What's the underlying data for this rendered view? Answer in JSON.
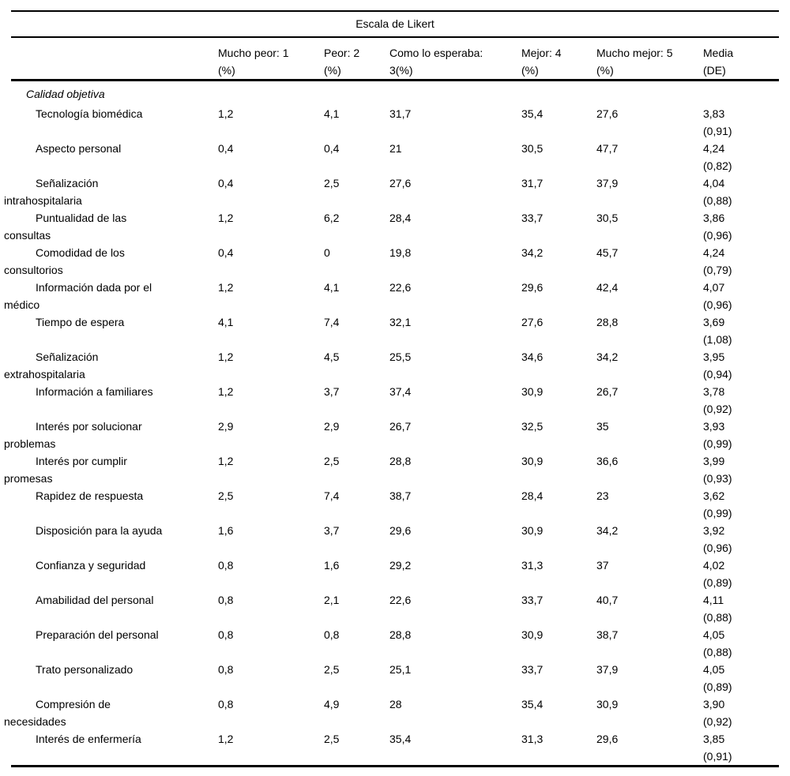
{
  "page": {
    "background_color": "#ffffff",
    "text_color": "#000000",
    "rule_color": "#000000"
  },
  "table": {
    "title": "Escala de Likert",
    "section": "Calidad objetiva",
    "columns": [
      {
        "line1": "Mucho peor: 1",
        "line2": "(%)"
      },
      {
        "line1": "Peor: 2",
        "line2": "(%)"
      },
      {
        "line1": "Como lo esperaba:",
        "line2": "3(%)"
      },
      {
        "line1": "Mejor: 4",
        "line2": "(%)"
      },
      {
        "line1": "Mucho mejor: 5",
        "line2": "(%)"
      },
      {
        "line1": "Media",
        "line2": "(DE)"
      }
    ],
    "rows": [
      {
        "label": "Tecnología biomédica",
        "values": [
          "1,2",
          "4,1",
          "31,7",
          "35,4",
          "27,6"
        ],
        "media": "3,83",
        "de": "(0,91)"
      },
      {
        "label": "Aspecto personal",
        "values": [
          "0,4",
          "0,4",
          "21",
          "30,5",
          "47,7"
        ],
        "media": "4,24",
        "de": "(0,82)"
      },
      {
        "label": "Señalización\nintrahospitalaria",
        "values": [
          "0,4",
          "2,5",
          "27,6",
          "31,7",
          "37,9"
        ],
        "media": "4,04",
        "de": "(0,88)"
      },
      {
        "label": "Puntualidad de las\nconsultas",
        "values": [
          "1,2",
          "6,2",
          "28,4",
          "33,7",
          "30,5"
        ],
        "media": "3,86",
        "de": "(0,96)"
      },
      {
        "label": "Comodidad de los\nconsultorios",
        "values": [
          "0,4",
          "0",
          "19,8",
          "34,2",
          "45,7"
        ],
        "media": "4,24",
        "de": "(0,79)"
      },
      {
        "label": "Información dada por el\nmédico",
        "values": [
          "1,2",
          "4,1",
          "22,6",
          "29,6",
          "42,4"
        ],
        "media": "4,07",
        "de": "(0,96)"
      },
      {
        "label": "Tiempo de espera",
        "values": [
          "4,1",
          "7,4",
          "32,1",
          "27,6",
          "28,8"
        ],
        "media": "3,69",
        "de": "(1,08)"
      },
      {
        "label": "Señalización\nextrahospitalaria",
        "values": [
          "1,2",
          "4,5",
          "25,5",
          "34,6",
          "34,2"
        ],
        "media": "3,95",
        "de": "(0,94)"
      },
      {
        "label": "Información a familiares",
        "values": [
          "1,2",
          "3,7",
          "37,4",
          "30,9",
          "26,7"
        ],
        "media": "3,78",
        "de": "(0,92)"
      },
      {
        "label": "Interés por solucionar\nproblemas",
        "values": [
          "2,9",
          "2,9",
          "26,7",
          "32,5",
          "35"
        ],
        "media": "3,93",
        "de": "(0,99)"
      },
      {
        "label": "Interés por cumplir\npromesas",
        "values": [
          "1,2",
          "2,5",
          "28,8",
          "30,9",
          "36,6"
        ],
        "media": "3,99",
        "de": "(0,93)"
      },
      {
        "label": "Rapidez de respuesta",
        "values": [
          "2,5",
          "7,4",
          "38,7",
          "28,4",
          "23"
        ],
        "media": "3,62",
        "de": "(0,99)"
      },
      {
        "label": "Disposición para la ayuda",
        "values": [
          "1,6",
          "3,7",
          "29,6",
          "30,9",
          "34,2"
        ],
        "media": "3,92",
        "de": "(0,96)"
      },
      {
        "label": "Confianza y seguridad",
        "values": [
          "0,8",
          "1,6",
          "29,2",
          "31,3",
          "37"
        ],
        "media": "4,02",
        "de": "(0,89)"
      },
      {
        "label": "Amabilidad del personal",
        "values": [
          "0,8",
          "2,1",
          "22,6",
          "33,7",
          "40,7"
        ],
        "media": "4,11",
        "de": "(0,88)"
      },
      {
        "label": "Preparación del personal",
        "values": [
          "0,8",
          "0,8",
          "28,8",
          "30,9",
          "38,7"
        ],
        "media": "4,05",
        "de": "(0,88)"
      },
      {
        "label": "Trato personalizado",
        "values": [
          "0,8",
          "2,5",
          "25,1",
          "33,7",
          "37,9"
        ],
        "media": "4,05",
        "de": "(0,89)"
      },
      {
        "label": "Compresión de\nnecesidades",
        "values": [
          "0,8",
          "4,9",
          "28",
          "35,4",
          "30,9"
        ],
        "media": "3,90",
        "de": "(0,92)"
      },
      {
        "label": "Interés de enfermería",
        "values": [
          "1,2",
          "2,5",
          "35,4",
          "31,3",
          "29,6"
        ],
        "media": "3,85",
        "de": "(0,91)"
      }
    ]
  }
}
